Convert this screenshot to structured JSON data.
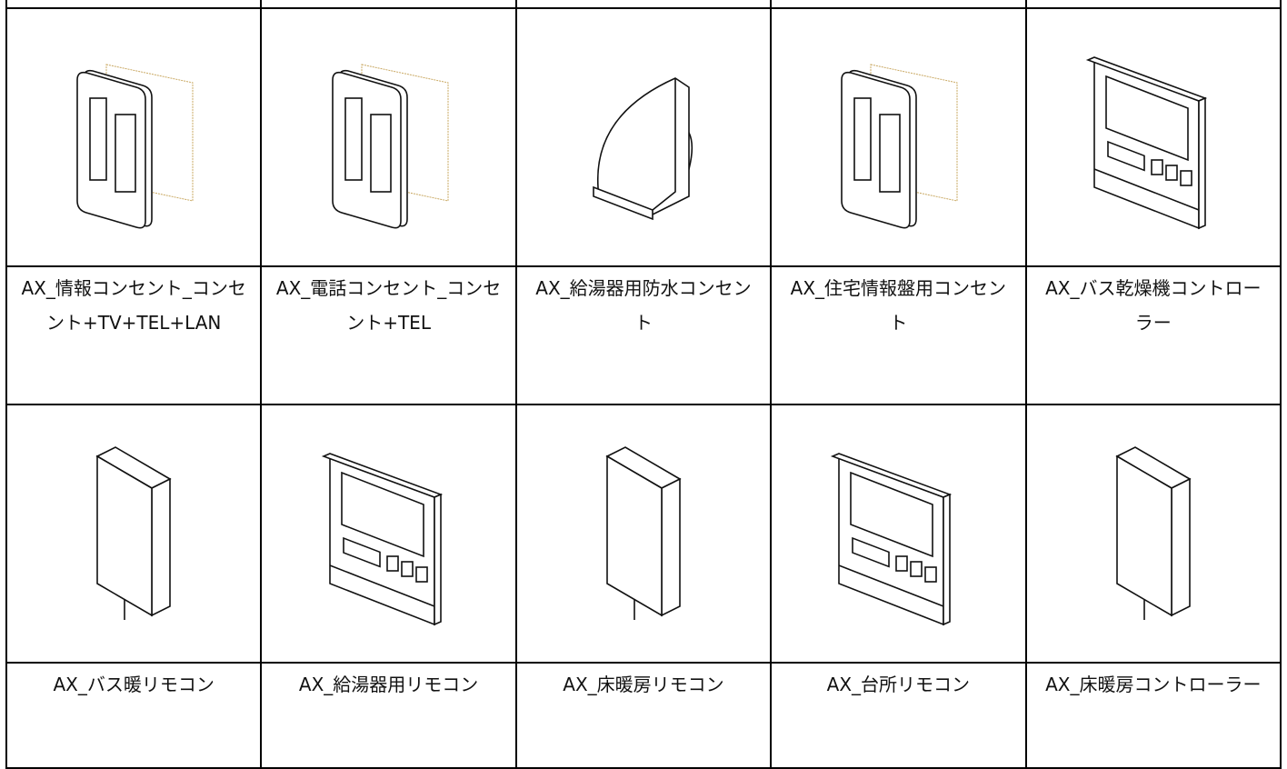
{
  "items": [
    {
      "label": "AX_情報コンセント_コンセント+TV+TEL+LAN"
    },
    {
      "label": "AX_電話コンセント_コンセント+TEL"
    },
    {
      "label": "AX_給湯器用防水コンセント"
    },
    {
      "label": "AX_住宅情報盤用コンセント"
    },
    {
      "label": "AX_バス乾燥機コントローラー"
    },
    {
      "label": "AX_バス暖リモコン"
    },
    {
      "label": "AX_給湯器用リモコン"
    },
    {
      "label": "AX_床暖房リモコン"
    },
    {
      "label": "AX_台所リモコン"
    },
    {
      "label": "AX_床暖房コントローラー"
    }
  ]
}
